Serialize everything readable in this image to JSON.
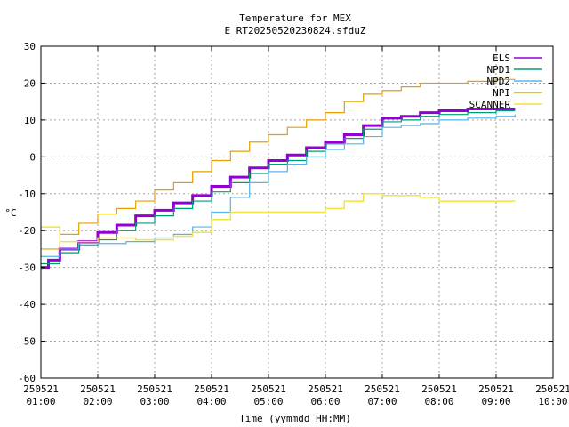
{
  "chart_data": {
    "type": "line",
    "title": "Temperature for MEX",
    "subtitle": "E_RT20250520230824.sfduZ",
    "xlabel": "Time (yymmdd HH:MM)",
    "ylabel": "°C",
    "xlim": [
      "2025-05-21 01:00",
      "2025-05-21 10:00"
    ],
    "ylim": [
      -60,
      30
    ],
    "yticks": [
      -60,
      -50,
      -40,
      -30,
      -20,
      -10,
      0,
      10,
      20,
      30
    ],
    "xticks": [
      {
        "date": "250521",
        "time": "01:00"
      },
      {
        "date": "250521",
        "time": "02:00"
      },
      {
        "date": "250521",
        "time": "03:00"
      },
      {
        "date": "250521",
        "time": "04:00"
      },
      {
        "date": "250521",
        "time": "05:00"
      },
      {
        "date": "250521",
        "time": "06:00"
      },
      {
        "date": "250521",
        "time": "07:00"
      },
      {
        "date": "250521",
        "time": "08:00"
      },
      {
        "date": "250521",
        "time": "09:00"
      },
      {
        "date": "250521",
        "time": "10:00"
      }
    ],
    "grid": true,
    "legend_position": "top-right",
    "series": [
      {
        "name": "ELS",
        "color": "#9400d3",
        "points": [
          [
            "01:00",
            -30
          ],
          [
            "01:08",
            -28
          ],
          [
            "01:20",
            -25
          ],
          [
            "01:40",
            -23
          ],
          [
            "02:00",
            -20.5
          ],
          [
            "02:20",
            -18.5
          ],
          [
            "02:40",
            -16
          ],
          [
            "03:00",
            -14.5
          ],
          [
            "03:20",
            -12.5
          ],
          [
            "03:40",
            -10.5
          ],
          [
            "04:00",
            -8
          ],
          [
            "04:20",
            -5.5
          ],
          [
            "04:40",
            -3
          ],
          [
            "05:00",
            -1
          ],
          [
            "05:20",
            0.5
          ],
          [
            "05:40",
            2.5
          ],
          [
            "06:00",
            4
          ],
          [
            "06:20",
            6
          ],
          [
            "06:40",
            8.5
          ],
          [
            "07:00",
            10.5
          ],
          [
            "07:20",
            11
          ],
          [
            "07:40",
            12
          ],
          [
            "08:00",
            12.5
          ],
          [
            "08:30",
            13
          ],
          [
            "09:00",
            13
          ],
          [
            "09:20",
            13
          ]
        ]
      },
      {
        "name": "NPD1",
        "color": "#009e73",
        "points": [
          [
            "01:00",
            -29
          ],
          [
            "01:20",
            -26
          ],
          [
            "01:40",
            -24
          ],
          [
            "02:00",
            -22.5
          ],
          [
            "02:20",
            -20
          ],
          [
            "02:40",
            -18
          ],
          [
            "03:00",
            -16
          ],
          [
            "03:20",
            -14
          ],
          [
            "03:40",
            -12
          ],
          [
            "04:00",
            -9.5
          ],
          [
            "04:20",
            -7
          ],
          [
            "04:40",
            -4.5
          ],
          [
            "05:00",
            -2
          ],
          [
            "05:20",
            -1
          ],
          [
            "05:40",
            1.5
          ],
          [
            "06:00",
            3.5
          ],
          [
            "06:20",
            5
          ],
          [
            "06:40",
            7.5
          ],
          [
            "07:00",
            9.5
          ],
          [
            "07:20",
            10
          ],
          [
            "07:40",
            11
          ],
          [
            "08:00",
            11.5
          ],
          [
            "08:30",
            12
          ],
          [
            "09:00",
            12.5
          ],
          [
            "09:20",
            12.5
          ]
        ]
      },
      {
        "name": "NPD2",
        "color": "#56b4e9",
        "points": [
          [
            "01:00",
            -27
          ],
          [
            "01:20",
            -25
          ],
          [
            "01:40",
            -23.5
          ],
          [
            "02:00",
            -23.5
          ],
          [
            "02:30",
            -23
          ],
          [
            "03:00",
            -22
          ],
          [
            "03:20",
            -21
          ],
          [
            "03:40",
            -19
          ],
          [
            "04:00",
            -15
          ],
          [
            "04:20",
            -11
          ],
          [
            "04:40",
            -7
          ],
          [
            "05:00",
            -4
          ],
          [
            "05:20",
            -2
          ],
          [
            "05:40",
            0
          ],
          [
            "06:00",
            2
          ],
          [
            "06:20",
            3.5
          ],
          [
            "06:40",
            5.5
          ],
          [
            "07:00",
            8
          ],
          [
            "07:20",
            8.5
          ],
          [
            "07:40",
            9
          ],
          [
            "08:00",
            10
          ],
          [
            "08:30",
            10.5
          ],
          [
            "09:00",
            11
          ],
          [
            "09:20",
            11.5
          ]
        ]
      },
      {
        "name": "NPI",
        "color": "#e69f00",
        "points": [
          [
            "01:00",
            -25
          ],
          [
            "01:20",
            -21
          ],
          [
            "01:40",
            -18
          ],
          [
            "02:00",
            -15.5
          ],
          [
            "02:20",
            -14
          ],
          [
            "02:40",
            -12
          ],
          [
            "03:00",
            -9
          ],
          [
            "03:20",
            -7
          ],
          [
            "03:40",
            -4
          ],
          [
            "04:00",
            -1
          ],
          [
            "04:20",
            1.5
          ],
          [
            "04:40",
            4
          ],
          [
            "05:00",
            6
          ],
          [
            "05:20",
            8
          ],
          [
            "05:40",
            10
          ],
          [
            "06:00",
            12
          ],
          [
            "06:20",
            15
          ],
          [
            "06:40",
            17
          ],
          [
            "07:00",
            18
          ],
          [
            "07:20",
            19
          ],
          [
            "07:40",
            20
          ],
          [
            "08:00",
            20
          ],
          [
            "08:30",
            20.5
          ],
          [
            "09:00",
            21
          ],
          [
            "09:20",
            21
          ]
        ]
      },
      {
        "name": "SCANNER",
        "color": "#f0e442",
        "points": [
          [
            "01:00",
            -19
          ],
          [
            "01:20",
            -19
          ],
          [
            "01:20",
            -23
          ],
          [
            "02:00",
            -22
          ],
          [
            "02:40",
            -22.5
          ],
          [
            "03:20",
            -21.5
          ],
          [
            "03:40",
            -20.5
          ],
          [
            "04:00",
            -17
          ],
          [
            "04:20",
            -15
          ],
          [
            "05:00",
            -15
          ],
          [
            "05:30",
            -15
          ],
          [
            "06:00",
            -14
          ],
          [
            "06:20",
            -12
          ],
          [
            "06:40",
            -10
          ],
          [
            "07:00",
            -10.5
          ],
          [
            "07:40",
            -11
          ],
          [
            "08:00",
            -12
          ],
          [
            "09:00",
            -12
          ],
          [
            "09:20",
            -12
          ]
        ]
      }
    ]
  }
}
